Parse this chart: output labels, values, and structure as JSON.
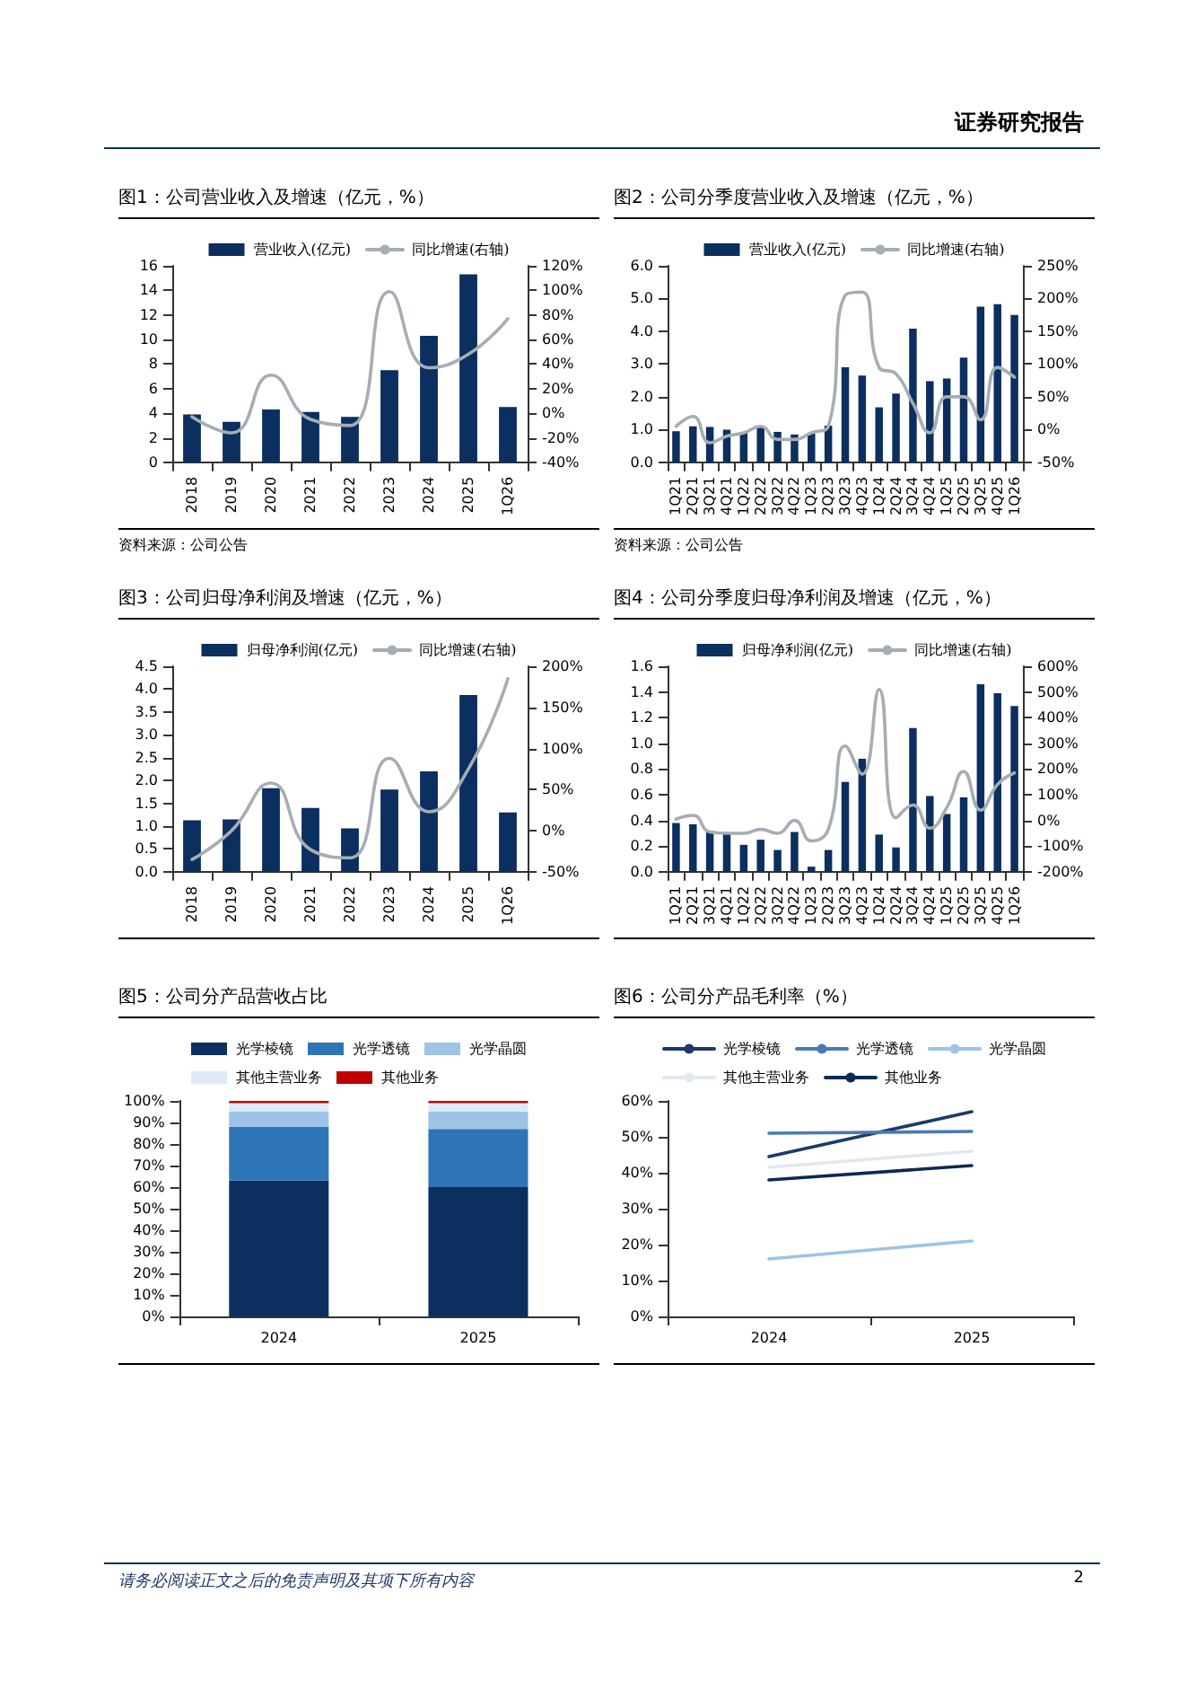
{
  "chart_data": [
    {
      "type": "bar",
      "title": "图1：公司营业收入及增速（亿元，%）",
      "categories": [
        "2018",
        "2019",
        "2020",
        "2021",
        "2022",
        "2023",
        "2024",
        "2025",
        "1Q26"
      ],
      "series": [
        {
          "name": "营业收入(亿元)",
          "color": "#0b2f5e",
          "values": [
            3.9,
            3.3,
            4.3,
            4.1,
            3.7,
            7.5,
            10.3,
            15.3,
            4.5
          ]
        },
        {
          "name": "同比增速(右轴)",
          "type": "line",
          "axis": "y2",
          "color": "#a6adb4",
          "values": [
            -3,
            -16,
            31,
            -5,
            -10,
            99,
            37,
            48,
            77
          ]
        }
      ],
      "ylim": [
        0,
        16
      ],
      "yticks": [
        0,
        2,
        4,
        6,
        8,
        10,
        12,
        14,
        16
      ],
      "y2lim": [
        -40,
        120
      ],
      "y2ticks": [
        {
          "value": -40,
          "label": "-40%"
        },
        {
          "value": -20,
          "label": "-20%"
        },
        {
          "value": 0,
          "label": "0%"
        },
        {
          "value": 20,
          "label": "20%"
        },
        {
          "value": 40,
          "label": "40%"
        },
        {
          "value": 60,
          "label": "60%"
        },
        {
          "value": 80,
          "label": "80%"
        },
        {
          "value": 100,
          "label": "100%"
        },
        {
          "value": 120,
          "label": "120%"
        }
      ],
      "legend": "top",
      "marker": "none",
      "line_style": "solid",
      "grid": false,
      "annotations": [
        "资料来源：公司公告",
        "证券研究报告"
      ]
    },
    {
      "type": "bar",
      "title": "图2：公司分季度营业收入及增速（亿元，%）",
      "categories": [
        "1Q21",
        "2Q21",
        "3Q21",
        "4Q21",
        "1Q22",
        "2Q22",
        "3Q22",
        "4Q22",
        "1Q23",
        "2Q23",
        "3Q23",
        "4Q23",
        "1Q24",
        "2Q24",
        "3Q24",
        "4Q24",
        "1Q25",
        "2Q25",
        "3Q25",
        "4Q25",
        "1Q26"
      ],
      "series": [
        {
          "name": "营业收入(亿元)",
          "color": "#0b2f5e",
          "values": [
            0.95,
            1.1,
            1.08,
            1.0,
            0.9,
            1.1,
            0.93,
            0.85,
            0.88,
            1.12,
            2.9,
            2.65,
            1.68,
            2.1,
            4.08,
            2.48,
            2.56,
            3.2,
            4.75,
            4.83,
            4.5
          ]
        },
        {
          "name": "同比增速(右轴)",
          "type": "line",
          "axis": "y2",
          "color": "#a6adb4",
          "values": [
            5,
            20,
            -20,
            -10,
            -5,
            5,
            -15,
            -15,
            -5,
            5,
            205,
            210,
            95,
            85,
            40,
            -5,
            50,
            50,
            15,
            95,
            80
          ]
        }
      ],
      "ylim": [
        0,
        6
      ],
      "yticks": [
        {
          "value": 0,
          "label": "0.0"
        },
        {
          "value": 1,
          "label": "1.0"
        },
        {
          "value": 2,
          "label": "2.0"
        },
        {
          "value": 3,
          "label": "3.0"
        },
        {
          "value": 4,
          "label": "4.0"
        },
        {
          "value": 5,
          "label": "5.0"
        },
        {
          "value": 6,
          "label": "6.0"
        }
      ],
      "y2lim": [
        -50,
        250
      ],
      "y2ticks": [
        {
          "value": -50,
          "label": "-50%"
        },
        {
          "value": 0,
          "label": "0%"
        },
        {
          "value": 50,
          "label": "50%"
        },
        {
          "value": 100,
          "label": "100%"
        },
        {
          "value": 150,
          "label": "150%"
        },
        {
          "value": 200,
          "label": "200%"
        },
        {
          "value": 250,
          "label": "250%"
        }
      ],
      "legend": "top",
      "marker": "none",
      "line_style": "solid",
      "grid": false,
      "annotations": [
        "资料来源：公司公告"
      ]
    },
    {
      "type": "bar",
      "title": "图3：公司归母净利润及增速（亿元，%）",
      "categories": [
        "2018",
        "2019",
        "2020",
        "2021",
        "2022",
        "2023",
        "2024",
        "2025",
        "1Q26"
      ],
      "series": [
        {
          "name": "归母净利润(亿元)",
          "color": "#0b2f5e",
          "values": [
            1.13,
            1.15,
            1.83,
            1.4,
            0.95,
            1.8,
            2.2,
            3.87,
            1.3
          ]
        },
        {
          "name": "同比增速(右轴)",
          "type": "line",
          "axis": "y2",
          "color": "#a6adb4",
          "values": [
            -35,
            0,
            58,
            -23,
            -33,
            88,
            23,
            75,
            185
          ]
        }
      ],
      "ylim": [
        0,
        4.5
      ],
      "yticks": [
        {
          "value": 0,
          "label": "0.0"
        },
        {
          "value": 0.5,
          "label": "0.5"
        },
        {
          "value": 1,
          "label": "1.0"
        },
        {
          "value": 1.5,
          "label": "1.5"
        },
        {
          "value": 2,
          "label": "2.0"
        },
        {
          "value": 2.5,
          "label": "2.5"
        },
        {
          "value": 3,
          "label": "3.0"
        },
        {
          "value": 3.5,
          "label": "3.5"
        },
        {
          "value": 4,
          "label": "4.0"
        },
        {
          "value": 4.5,
          "label": "4.5"
        }
      ],
      "y2lim": [
        -50,
        200
      ],
      "y2ticks": [
        {
          "value": -50,
          "label": "-50%"
        },
        {
          "value": 0,
          "label": "0%"
        },
        {
          "value": 50,
          "label": "50%"
        },
        {
          "value": 100,
          "label": "100%"
        },
        {
          "value": 150,
          "label": "150%"
        },
        {
          "value": 200,
          "label": "200%"
        }
      ],
      "legend": "top",
      "marker": "none",
      "line_style": "solid",
      "grid": false
    },
    {
      "type": "bar",
      "title": "图4：公司分季度归母净利润及增速（亿元，%）",
      "categories": [
        "1Q21",
        "2Q21",
        "3Q21",
        "4Q21",
        "1Q22",
        "2Q22",
        "3Q22",
        "4Q22",
        "1Q23",
        "2Q23",
        "3Q23",
        "4Q23",
        "1Q24",
        "2Q24",
        "3Q24",
        "4Q24",
        "1Q25",
        "2Q25",
        "3Q25",
        "4Q25",
        "1Q26"
      ],
      "series": [
        {
          "name": "归母净利润(亿元)",
          "color": "#0b2f5e",
          "values": [
            0.38,
            0.37,
            0.32,
            0.3,
            0.21,
            0.25,
            0.17,
            0.31,
            0.04,
            0.17,
            0.7,
            0.88,
            0.29,
            0.19,
            1.12,
            0.59,
            0.45,
            0.58,
            1.46,
            1.39,
            1.29
          ]
        },
        {
          "name": "同比增速(右轴)",
          "type": "line",
          "axis": "y2",
          "color": "#a6adb4",
          "values": [
            5,
            20,
            -45,
            -50,
            -50,
            -35,
            -50,
            0,
            -80,
            -35,
            290,
            180,
            510,
            10,
            60,
            -30,
            50,
            190,
            40,
            140,
            185
          ]
        }
      ],
      "ylim": [
        0,
        1.6
      ],
      "yticks": [
        {
          "value": 0,
          "label": "0.0"
        },
        {
          "value": 0.2,
          "label": "0.2"
        },
        {
          "value": 0.4,
          "label": "0.4"
        },
        {
          "value": 0.6,
          "label": "0.6"
        },
        {
          "value": 0.8,
          "label": "0.8"
        },
        {
          "value": 1,
          "label": "1.0"
        },
        {
          "value": 1.2,
          "label": "1.2"
        },
        {
          "value": 1.4,
          "label": "1.4"
        },
        {
          "value": 1.6,
          "label": "1.6"
        }
      ],
      "y2lim": [
        -200,
        600
      ],
      "y2ticks": [
        {
          "value": -200,
          "label": "-200%"
        },
        {
          "value": -100,
          "label": "-100%"
        },
        {
          "value": 0,
          "label": "0%"
        },
        {
          "value": 100,
          "label": "100%"
        },
        {
          "value": 200,
          "label": "200%"
        },
        {
          "value": 300,
          "label": "300%"
        },
        {
          "value": 400,
          "label": "400%"
        },
        {
          "value": 500,
          "label": "500%"
        },
        {
          "value": 600,
          "label": "600%"
        }
      ],
      "legend": "top",
      "marker": "none",
      "line_style": "solid",
      "grid": false
    },
    {
      "type": "bar",
      "title": "图5：公司分产品营收占比",
      "categories": [
        "2024",
        "2025"
      ],
      "stacked": true,
      "series": [
        {
          "name": "光学棱镜",
          "color": "#0b2f5e",
          "values": [
            63,
            60
          ]
        },
        {
          "name": "光学透镜",
          "color": "#2e75b6",
          "values": [
            25,
            27
          ]
        },
        {
          "name": "光学晶圆",
          "color": "#9dc3e6",
          "values": [
            7,
            8
          ]
        },
        {
          "name": "其他主营业务",
          "color": "#deebf7",
          "values": [
            4,
            4
          ]
        },
        {
          "name": "其他业务",
          "color": "#c00000",
          "values": [
            1,
            1
          ]
        }
      ],
      "ylim": [
        0,
        100
      ],
      "yticks": [
        {
          "value": 0,
          "label": "0%"
        },
        {
          "value": 10,
          "label": "10%"
        },
        {
          "value": 20,
          "label": "20%"
        },
        {
          "value": 30,
          "label": "30%"
        },
        {
          "value": 40,
          "label": "40%"
        },
        {
          "value": 50,
          "label": "50%"
        },
        {
          "value": 60,
          "label": "60%"
        },
        {
          "value": 70,
          "label": "70%"
        },
        {
          "value": 80,
          "label": "80%"
        },
        {
          "value": 90,
          "label": "90%"
        },
        {
          "value": 100,
          "label": "100%"
        }
      ],
      "legend": "top",
      "grid": false
    },
    {
      "type": "line",
      "title": "图6：公司分产品毛利率（%）",
      "categories": [
        "2024",
        "2025"
      ],
      "series": [
        {
          "name": "光学棱镜",
          "color": "#1b3a6b",
          "values": [
            44.5,
            57
          ]
        },
        {
          "name": "光学透镜",
          "color": "#4a7ab5",
          "values": [
            51,
            51.5
          ]
        },
        {
          "name": "光学晶圆",
          "color": "#9dc3e6",
          "values": [
            16,
            21
          ]
        },
        {
          "name": "其他主营业务",
          "color": "#e2e8f0",
          "values": [
            41.5,
            46
          ]
        },
        {
          "name": "其他业务",
          "color": "#0d2a55",
          "values": [
            38,
            42
          ]
        }
      ],
      "ylim": [
        0,
        60
      ],
      "yticks": [
        {
          "value": 0,
          "label": "0%"
        },
        {
          "value": 10,
          "label": "10%"
        },
        {
          "value": 20,
          "label": "20%"
        },
        {
          "value": 30,
          "label": "30%"
        },
        {
          "value": 40,
          "label": "40%"
        },
        {
          "value": 50,
          "label": "50%"
        },
        {
          "value": 60,
          "label": "60%"
        }
      ],
      "legend": "top",
      "marker": "none",
      "line_style": "solid",
      "grid": false,
      "annotations": [
        "请务必阅读正文之后的免责声明及其项下所有内容",
        "2"
      ]
    }
  ]
}
